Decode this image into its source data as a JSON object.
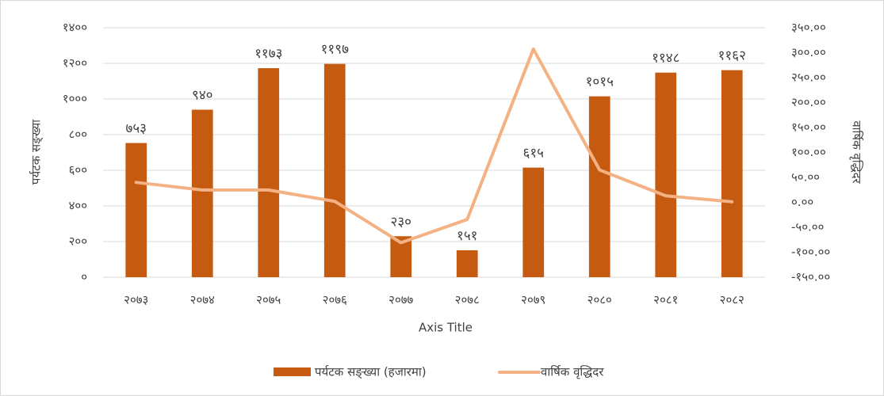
{
  "chart_data": {
    "type": "bar",
    "categories": [
      "२०७३",
      "२०७४",
      "२०७५",
      "२०७६",
      "२०७७",
      "२०७८",
      "२०७९",
      "२०८०",
      "२०८१",
      "२०८२"
    ],
    "series": [
      {
        "name": "पर्यटक सङ्ख्या (हजारमा)",
        "type": "bar",
        "color": "#c55a11",
        "values": [
          753,
          940,
          1173,
          1197,
          230,
          151,
          615,
          1015,
          1148,
          1162
        ],
        "value_labels": [
          "७५३",
          "९४०",
          "११७३",
          "११९७",
          "२३०",
          "१५१",
          "६१५",
          "१०१५",
          "११४८",
          "११६२"
        ]
      },
      {
        "name": "वार्षिक वृद्धिदर",
        "type": "line",
        "axis": "y2",
        "color": "#f4b183",
        "values": [
          40,
          24.8,
          24.8,
          2.0,
          -80.8,
          -34.3,
          307.3,
          65.0,
          13.1,
          1.2
        ]
      }
    ],
    "ylim": [
      0,
      1400
    ],
    "yticks": [
      {
        "value": 0,
        "label": "०"
      },
      {
        "value": 200,
        "label": "२००"
      },
      {
        "value": 400,
        "label": "४००"
      },
      {
        "value": 600,
        "label": "६००"
      },
      {
        "value": 800,
        "label": "८००"
      },
      {
        "value": 1000,
        "label": "१०००"
      },
      {
        "value": 1200,
        "label": "१२००"
      },
      {
        "value": 1400,
        "label": "१४००"
      }
    ],
    "y2lim": [
      -150,
      350
    ],
    "y2ticks": [
      {
        "value": -150,
        "label": "-१५०.००"
      },
      {
        "value": -100,
        "label": "-१००.००"
      },
      {
        "value": -50,
        "label": "-५०.००"
      },
      {
        "value": 0,
        "label": "०.००"
      },
      {
        "value": 50,
        "label": "५०.००"
      },
      {
        "value": 100,
        "label": "१००.००"
      },
      {
        "value": 150,
        "label": "१५०.००"
      },
      {
        "value": 200,
        "label": "२००.००"
      },
      {
        "value": 250,
        "label": "२५०.००"
      },
      {
        "value": 300,
        "label": "३००.००"
      },
      {
        "value": 350,
        "label": "३५०.००"
      }
    ],
    "ylabel": "पर्यटक सङ्ख्या",
    "y2label": "वार्षिक वृद्धिदर",
    "xlabel": "Axis Title",
    "grid": true,
    "legend": "bottom"
  }
}
